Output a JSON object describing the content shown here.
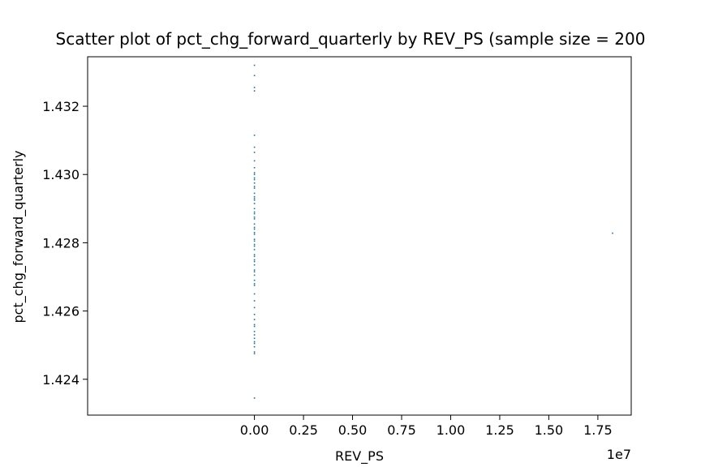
{
  "chart_data": {
    "type": "scatter",
    "title": "Scatter plot of pct_chg_forward_quarterly by REV_PS (sample size = 200",
    "xlabel": "REV_PS",
    "ylabel": "pct_chg_forward_quarterly",
    "x_offset_label": "1e7",
    "xlim": [
      -8500000,
      19200000
    ],
    "ylim": [
      1.42295,
      1.43345
    ],
    "x_tick_values": [
      0,
      2500000,
      5000000,
      7500000,
      10000000,
      12500000,
      15000000,
      17500000
    ],
    "x_tick_labels": [
      "0.00",
      "0.25",
      "0.50",
      "0.75",
      "1.00",
      "1.25",
      "1.50",
      "1.75"
    ],
    "y_tick_values": [
      1.424,
      1.426,
      1.428,
      1.43,
      1.432
    ],
    "y_tick_labels": [
      "1.424",
      "1.426",
      "1.428",
      "1.430",
      "1.432"
    ],
    "grid": false,
    "marker_color": "#1f6f9f",
    "series": [
      {
        "x": [
          0,
          0,
          0,
          0,
          0,
          0,
          0,
          0,
          0,
          0,
          0,
          0,
          0,
          0,
          0,
          0,
          0,
          0,
          0,
          0,
          0,
          0,
          0,
          0,
          0,
          0,
          0,
          0,
          0,
          0,
          0,
          0,
          0,
          0,
          0,
          0,
          0,
          0,
          0,
          0,
          0,
          0,
          0,
          0,
          0,
          0,
          0,
          0,
          0,
          0,
          0,
          0,
          0,
          0,
          0,
          0,
          0,
          0,
          0,
          0,
          0,
          0,
          0,
          18250000
        ],
        "y": [
          1.4332,
          1.4329,
          1.43255,
          1.43245,
          1.43115,
          1.4308,
          1.43065,
          1.4304,
          1.4302,
          1.43005,
          1.4299,
          1.42975,
          1.4296,
          1.42945,
          1.4293,
          1.42915,
          1.429,
          1.42885,
          1.4287,
          1.42855,
          1.4284,
          1.42825,
          1.4281,
          1.42795,
          1.4278,
          1.42765,
          1.4275,
          1.42735,
          1.4272,
          1.42705,
          1.4269,
          1.42675,
          1.4265,
          1.4263,
          1.4261,
          1.4259,
          1.42575,
          1.4256,
          1.4254,
          1.4252,
          1.4251,
          1.42495,
          1.4248,
          1.42475,
          1.42345,
          1.42985,
          1.42935,
          1.4289,
          1.42845,
          1.42805,
          1.4276,
          1.42715,
          1.4268,
          1.42555,
          1.4253,
          1.42505,
          1.43,
          1.42965,
          1.42925,
          1.42875,
          1.4283,
          1.4279,
          1.42745,
          1.42828
        ]
      }
    ]
  }
}
